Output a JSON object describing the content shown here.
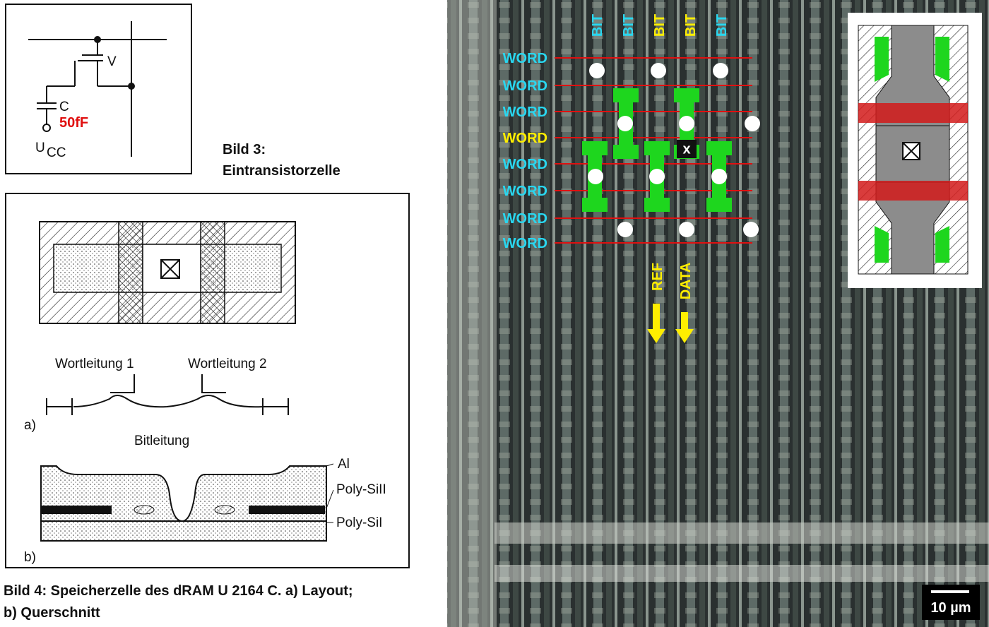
{
  "figure3": {
    "transistor_label": "V",
    "capacitor_label": "C",
    "capacitance": "50fF",
    "supply_label": "U",
    "supply_subscript": "CC",
    "caption_title": "Bild 3:",
    "caption_text": "Eintransistorzelle"
  },
  "figure4": {
    "wordline_1": "Wortleitung 1",
    "wordline_2": "Wortleitung 2",
    "part_a": "a)",
    "bitline": "Bitleitung",
    "layer_al": "Al",
    "layer_poly2": "Poly-SiII",
    "layer_poly1": "Poly-SiI",
    "part_b": "b)",
    "caption_line_1": "Bild 4: Speicherzelle des dRAM U 2164 C. a) Layout;",
    "caption_line_2": "b) Querschnitt"
  },
  "die_photo": {
    "bit_lines": [
      "BIT",
      "BIT",
      "BIT",
      "BIT",
      "BIT"
    ],
    "word_lines": [
      "WORD",
      "WORD",
      "WORD",
      "WORD",
      "WORD",
      "WORD",
      "WORD",
      "WORD"
    ],
    "selected_cell": "x",
    "ref_label": "REF",
    "data_label": "DATA",
    "scale_bar": "10 µm"
  }
}
